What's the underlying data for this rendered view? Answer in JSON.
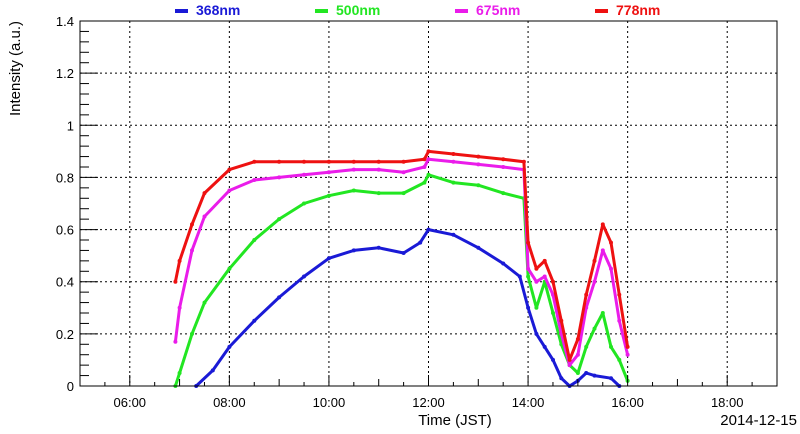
{
  "chart_data": {
    "type": "line",
    "xlabel": "Time (JST)",
    "ylabel": "Intensity (a.u.)",
    "date_label": "2014-12-15",
    "xlim": [
      "05:00",
      "19:00"
    ],
    "ylim": [
      0,
      1.4
    ],
    "x_ticks": [
      "06:00",
      "08:00",
      "10:00",
      "12:00",
      "14:00",
      "16:00",
      "18:00"
    ],
    "y_ticks": [
      "0",
      "0.2",
      "0.4",
      "0.6",
      "0.8",
      "1",
      "1.2",
      "1.4"
    ],
    "grid": true,
    "legend_position": "top",
    "series": [
      {
        "name": "368nm",
        "color": "#1a1ad6",
        "points": [
          [
            "07:20",
            0.0
          ],
          [
            "07:40",
            0.06
          ],
          [
            "08:00",
            0.15
          ],
          [
            "08:30",
            0.25
          ],
          [
            "09:00",
            0.34
          ],
          [
            "09:30",
            0.42
          ],
          [
            "10:00",
            0.49
          ],
          [
            "10:30",
            0.52
          ],
          [
            "11:00",
            0.53
          ],
          [
            "11:30",
            0.51
          ],
          [
            "11:50",
            0.55
          ],
          [
            "12:00",
            0.6
          ],
          [
            "12:30",
            0.58
          ],
          [
            "13:00",
            0.53
          ],
          [
            "13:30",
            0.47
          ],
          [
            "13:50",
            0.42
          ],
          [
            "14:00",
            0.3
          ],
          [
            "14:10",
            0.2
          ],
          [
            "14:20",
            0.15
          ],
          [
            "14:30",
            0.1
          ],
          [
            "14:40",
            0.03
          ],
          [
            "14:50",
            0.0
          ],
          [
            "15:00",
            0.02
          ],
          [
            "15:10",
            0.05
          ],
          [
            "15:20",
            0.04
          ],
          [
            "15:40",
            0.03
          ],
          [
            "15:50",
            0.0
          ]
        ]
      },
      {
        "name": "500nm",
        "color": "#22e622",
        "points": [
          [
            "06:55",
            0.0
          ],
          [
            "07:00",
            0.05
          ],
          [
            "07:15",
            0.2
          ],
          [
            "07:30",
            0.32
          ],
          [
            "08:00",
            0.45
          ],
          [
            "08:30",
            0.56
          ],
          [
            "09:00",
            0.64
          ],
          [
            "09:30",
            0.7
          ],
          [
            "10:00",
            0.73
          ],
          [
            "10:30",
            0.75
          ],
          [
            "11:00",
            0.74
          ],
          [
            "11:30",
            0.74
          ],
          [
            "11:55",
            0.78
          ],
          [
            "12:00",
            0.81
          ],
          [
            "12:30",
            0.78
          ],
          [
            "13:00",
            0.77
          ],
          [
            "13:30",
            0.74
          ],
          [
            "13:55",
            0.72
          ],
          [
            "14:00",
            0.42
          ],
          [
            "14:10",
            0.3
          ],
          [
            "14:20",
            0.4
          ],
          [
            "14:30",
            0.28
          ],
          [
            "14:40",
            0.16
          ],
          [
            "14:50",
            0.08
          ],
          [
            "15:00",
            0.05
          ],
          [
            "15:10",
            0.15
          ],
          [
            "15:20",
            0.22
          ],
          [
            "15:30",
            0.28
          ],
          [
            "15:40",
            0.15
          ],
          [
            "15:50",
            0.1
          ],
          [
            "16:00",
            0.02
          ]
        ]
      },
      {
        "name": "675nm",
        "color": "#ea1cea",
        "points": [
          [
            "06:55",
            0.17
          ],
          [
            "07:00",
            0.3
          ],
          [
            "07:15",
            0.52
          ],
          [
            "07:30",
            0.65
          ],
          [
            "08:00",
            0.75
          ],
          [
            "08:30",
            0.79
          ],
          [
            "09:00",
            0.8
          ],
          [
            "09:30",
            0.81
          ],
          [
            "10:00",
            0.82
          ],
          [
            "10:30",
            0.83
          ],
          [
            "11:00",
            0.83
          ],
          [
            "11:30",
            0.82
          ],
          [
            "11:55",
            0.84
          ],
          [
            "12:00",
            0.87
          ],
          [
            "12:30",
            0.86
          ],
          [
            "13:00",
            0.85
          ],
          [
            "13:30",
            0.84
          ],
          [
            "13:55",
            0.83
          ],
          [
            "14:00",
            0.45
          ],
          [
            "14:10",
            0.4
          ],
          [
            "14:20",
            0.42
          ],
          [
            "14:30",
            0.35
          ],
          [
            "14:40",
            0.2
          ],
          [
            "14:50",
            0.08
          ],
          [
            "15:00",
            0.12
          ],
          [
            "15:10",
            0.3
          ],
          [
            "15:20",
            0.4
          ],
          [
            "15:30",
            0.52
          ],
          [
            "15:40",
            0.45
          ],
          [
            "15:50",
            0.25
          ],
          [
            "16:00",
            0.12
          ]
        ]
      },
      {
        "name": "778nm",
        "color": "#ee1111",
        "points": [
          [
            "06:55",
            0.4
          ],
          [
            "07:00",
            0.48
          ],
          [
            "07:15",
            0.62
          ],
          [
            "07:30",
            0.74
          ],
          [
            "08:00",
            0.83
          ],
          [
            "08:30",
            0.86
          ],
          [
            "09:00",
            0.86
          ],
          [
            "09:30",
            0.86
          ],
          [
            "10:00",
            0.86
          ],
          [
            "10:30",
            0.86
          ],
          [
            "11:00",
            0.86
          ],
          [
            "11:30",
            0.86
          ],
          [
            "11:55",
            0.87
          ],
          [
            "12:00",
            0.9
          ],
          [
            "12:30",
            0.89
          ],
          [
            "13:00",
            0.88
          ],
          [
            "13:30",
            0.87
          ],
          [
            "13:55",
            0.86
          ],
          [
            "14:00",
            0.55
          ],
          [
            "14:10",
            0.45
          ],
          [
            "14:20",
            0.48
          ],
          [
            "14:30",
            0.4
          ],
          [
            "14:40",
            0.25
          ],
          [
            "14:50",
            0.1
          ],
          [
            "15:00",
            0.18
          ],
          [
            "15:10",
            0.35
          ],
          [
            "15:20",
            0.48
          ],
          [
            "15:30",
            0.62
          ],
          [
            "15:40",
            0.55
          ],
          [
            "15:50",
            0.35
          ],
          [
            "16:00",
            0.15
          ]
        ]
      }
    ]
  }
}
